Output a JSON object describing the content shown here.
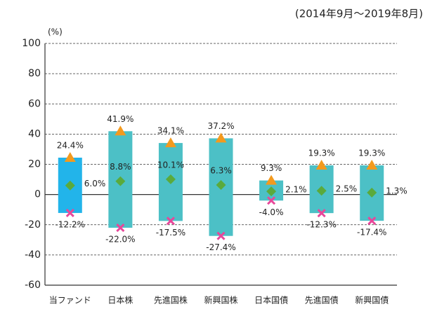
{
  "chart_data": {
    "type": "range",
    "subtitle": "(2014年9月～2019年8月)",
    "y_unit": "(%)",
    "categories": [
      "当ファンド",
      "日本株",
      "先進国株",
      "新興国株",
      "日本国債",
      "先進国債",
      "新興国債"
    ],
    "bar_colors": [
      "#22b4ea",
      "#4cc0c6",
      "#4cc0c6",
      "#4cc0c6",
      "#4cc0c6",
      "#4cc0c6",
      "#4cc0c6"
    ],
    "series": [
      {
        "marker": "triangle",
        "color": "#f39a1e",
        "values": [
          24.4,
          41.9,
          34.1,
          37.2,
          9.3,
          19.3,
          19.3
        ],
        "value_labels": [
          "24.4%",
          "41.9%",
          "34.1%",
          "37.2%",
          "9.3%",
          "19.3%",
          "19.3%"
        ]
      },
      {
        "marker": "diamond",
        "color": "#5aaa3c",
        "values": [
          6.0,
          8.8,
          10.1,
          6.3,
          2.1,
          2.5,
          1.3
        ],
        "value_labels": [
          "6.0%",
          "8.8%",
          "10.1%",
          "6.3%",
          "2.1%",
          "2.5%",
          "1.3%"
        ]
      },
      {
        "marker": "cross",
        "color": "#e8479a",
        "values": [
          -12.2,
          -22.0,
          -17.5,
          -27.4,
          -4.0,
          -12.3,
          -17.4
        ],
        "value_labels": [
          "-12.2%",
          "-22.0%",
          "-17.5%",
          "-27.4%",
          "-4.0%",
          "-12.3%",
          "-17.4%"
        ]
      }
    ],
    "ylim": [
      -60,
      100
    ],
    "yticks": [
      -60,
      -40,
      -20,
      0,
      20,
      40,
      60,
      80,
      100
    ],
    "grid": true
  }
}
